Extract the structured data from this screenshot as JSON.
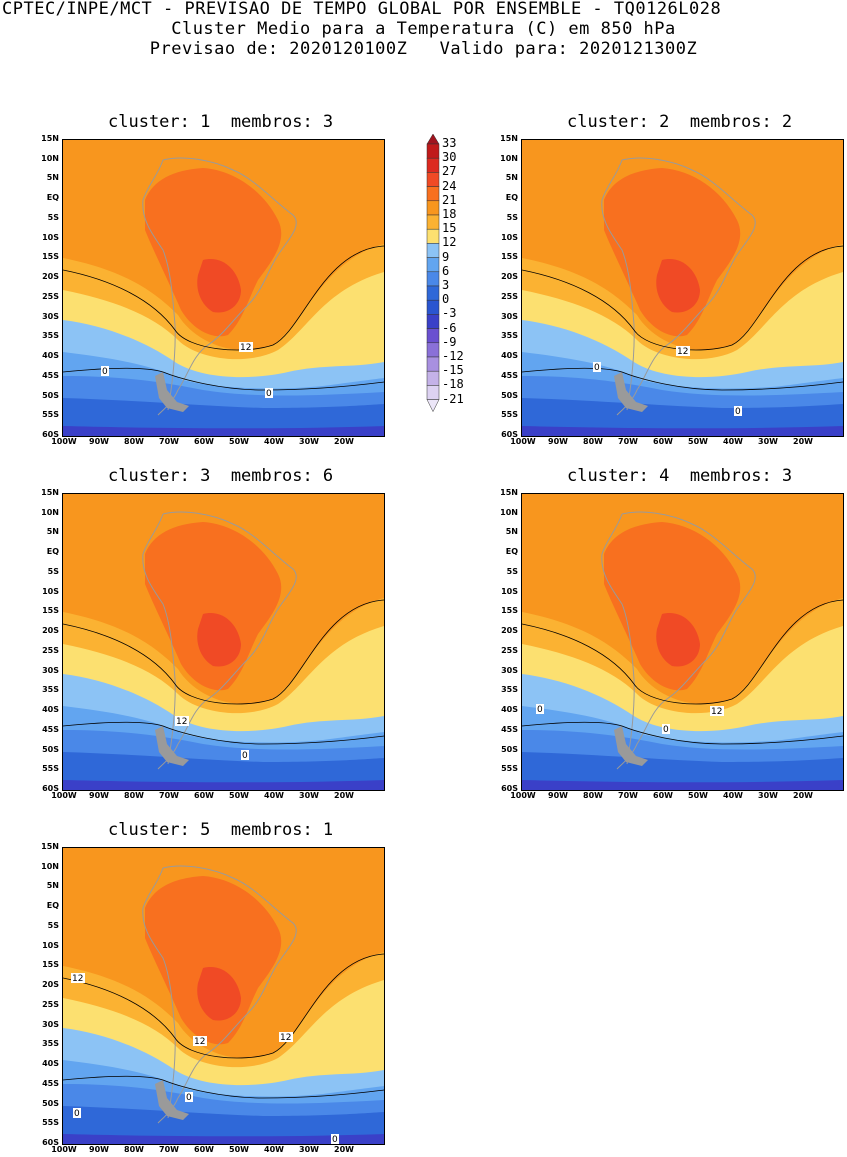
{
  "header": {
    "line1": "CPTEC/INPE/MCT - PREVISAO DE TEMPO GLOBAL POR ENSEMBLE - TQ0126L028",
    "line2": "Cluster Medio para a Temperatura (C) em 850 hPa",
    "line3": "Previsao de: 2020120100Z   Valido para: 2020121300Z"
  },
  "panels": [
    {
      "title": "cluster: 1  membros: 3",
      "contour_labels": [
        "12",
        "0",
        "0"
      ]
    },
    {
      "title": "cluster: 2  membros: 2",
      "contour_labels": [
        "12",
        "0",
        "0"
      ]
    },
    {
      "title": "cluster: 3  membros: 6",
      "contour_labels": [
        "12",
        "0"
      ]
    },
    {
      "title": "cluster: 4  membros: 3",
      "contour_labels": [
        "12",
        "0",
        "0"
      ]
    },
    {
      "title": "cluster: 5  membros: 1",
      "contour_labels": [
        "12",
        "12",
        "12",
        "0",
        "0",
        "0"
      ]
    }
  ],
  "lat_ticks": [
    "15N",
    "10N",
    "5N",
    "EQ",
    "5S",
    "10S",
    "15S",
    "20S",
    "25S",
    "30S",
    "35S",
    "40S",
    "45S",
    "50S",
    "55S",
    "60S"
  ],
  "lon_ticks": [
    "100W",
    "90W",
    "80W",
    "70W",
    "60W",
    "50W",
    "40W",
    "30W",
    "20W"
  ],
  "colorbar": {
    "levels": [
      "33",
      "30",
      "27",
      "24",
      "21",
      "18",
      "15",
      "12",
      "9",
      "6",
      "3",
      "0",
      "-3",
      "-6",
      "-9",
      "-12",
      "-15",
      "-18",
      "-21"
    ],
    "colors": [
      "#a0141e",
      "#c01a1a",
      "#dc2a20",
      "#f04a25",
      "#f8701f",
      "#f8961e",
      "#fbb232",
      "#fce070",
      "#8cc3f5",
      "#62a5f0",
      "#4a88e8",
      "#2f68d8",
      "#2a55d0",
      "#3a40c8",
      "#6a50d0",
      "#8a70d8",
      "#a890e0",
      "#c4b2e8",
      "#ddd2f2",
      "#ece6f8"
    ]
  }
}
